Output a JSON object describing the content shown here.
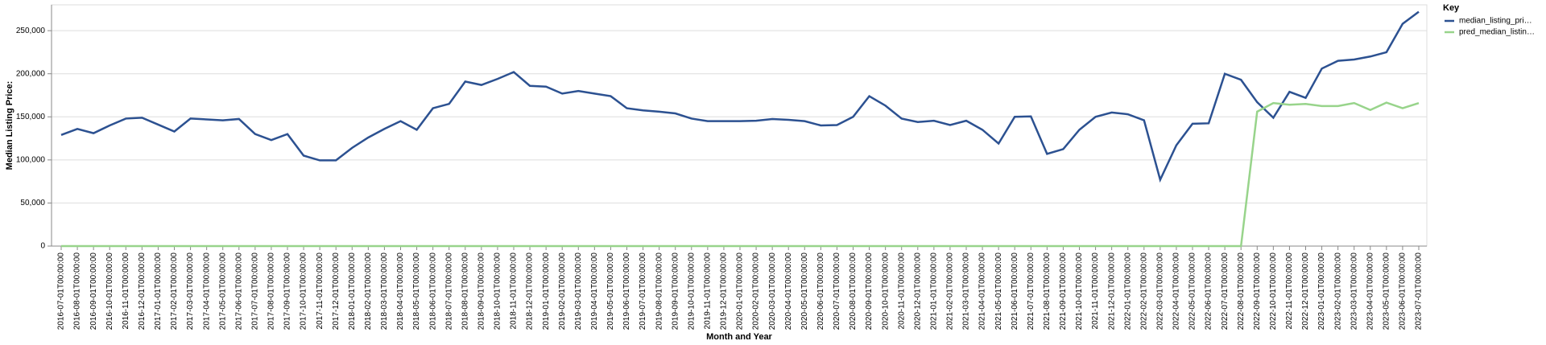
{
  "chart_data": {
    "type": "line",
    "x_label": "Month and Year",
    "y_label": "Median Listing Price:",
    "legend_title": "Key",
    "legend_position": "right",
    "grid": true,
    "categories": [
      "2016-07-01T00:00:00",
      "2016-08-01T00:00:00",
      "2016-09-01T00:00:00",
      "2016-10-01T00:00:00",
      "2016-11-01T00:00:00",
      "2016-12-01T00:00:00",
      "2017-01-01T00:00:00",
      "2017-02-01T00:00:00",
      "2017-03-01T00:00:00",
      "2017-04-01T00:00:00",
      "2017-05-01T00:00:00",
      "2017-06-01T00:00:00",
      "2017-07-01T00:00:00",
      "2017-08-01T00:00:00",
      "2017-09-01T00:00:00",
      "2017-10-01T00:00:00",
      "2017-11-01T00:00:00",
      "2017-12-01T00:00:00",
      "2018-01-01T00:00:00",
      "2018-02-01T00:00:00",
      "2018-03-01T00:00:00",
      "2018-04-01T00:00:00",
      "2018-05-01T00:00:00",
      "2018-06-01T00:00:00",
      "2018-07-01T00:00:00",
      "2018-08-01T00:00:00",
      "2018-09-01T00:00:00",
      "2018-10-01T00:00:00",
      "2018-11-01T00:00:00",
      "2018-12-01T00:00:00",
      "2019-01-01T00:00:00",
      "2019-02-01T00:00:00",
      "2019-03-01T00:00:00",
      "2019-04-01T00:00:00",
      "2019-05-01T00:00:00",
      "2019-06-01T00:00:00",
      "2019-07-01T00:00:00",
      "2019-08-01T00:00:00",
      "2019-09-01T00:00:00",
      "2019-10-01T00:00:00",
      "2019-11-01T00:00:00",
      "2019-12-01T00:00:00",
      "2020-01-01T00:00:00",
      "2020-02-01T00:00:00",
      "2020-03-01T00:00:00",
      "2020-04-01T00:00:00",
      "2020-05-01T00:00:00",
      "2020-06-01T00:00:00",
      "2020-07-01T00:00:00",
      "2020-08-01T00:00:00",
      "2020-09-01T00:00:00",
      "2020-10-01T00:00:00",
      "2020-11-01T00:00:00",
      "2020-12-01T00:00:00",
      "2021-01-01T00:00:00",
      "2021-02-01T00:00:00",
      "2021-03-01T00:00:00",
      "2021-04-01T00:00:00",
      "2021-05-01T00:00:00",
      "2021-06-01T00:00:00",
      "2021-07-01T00:00:00",
      "2021-08-01T00:00:00",
      "2021-09-01T00:00:00",
      "2021-10-01T00:00:00",
      "2021-11-01T00:00:00",
      "2021-12-01T00:00:00",
      "2022-01-01T00:00:00",
      "2022-02-01T00:00:00",
      "2022-03-01T00:00:00",
      "2022-04-01T00:00:00",
      "2022-05-01T00:00:00",
      "2022-06-01T00:00:00",
      "2022-07-01T00:00:00",
      "2022-08-01T00:00:00",
      "2022-09-01T00:00:00",
      "2022-10-01T00:00:00",
      "2022-11-01T00:00:00",
      "2022-12-01T00:00:00",
      "2023-01-01T00:00:00",
      "2023-02-01T00:00:00",
      "2023-03-01T00:00:00",
      "2023-04-01T00:00:00",
      "2023-05-01T00:00:00",
      "2023-06-01T00:00:00",
      "2023-07-01T00:00:00"
    ],
    "series": [
      {
        "name": "median_listing_pri…",
        "color": "#2c5191",
        "values": [
          129000,
          136000,
          131000,
          140000,
          148000,
          149000,
          141000,
          133000,
          148000,
          147000,
          146000,
          147500,
          130000,
          123000,
          130000,
          105000,
          99500,
          99500,
          114000,
          126000,
          136000,
          145000,
          135000,
          160000,
          165000,
          191000,
          187000,
          194000,
          202000,
          186000,
          185000,
          177000,
          180000,
          177000,
          174000,
          160000,
          157500,
          156000,
          154000,
          148000,
          145000,
          145000,
          145000,
          145500,
          147500,
          146500,
          145000,
          140000,
          140500,
          150000,
          174000,
          163000,
          148000,
          144000,
          145500,
          140500,
          145500,
          135000,
          119000,
          150000,
          150500,
          107000,
          112500,
          135000,
          150000,
          155000,
          153000,
          146000,
          77000,
          117000,
          142000,
          142500,
          200000,
          193000,
          167000,
          149000,
          179000,
          172000,
          206000,
          215000,
          216500,
          220000,
          225000,
          258000,
          272000
        ]
      },
      {
        "name": "pred_median_listin…",
        "color": "#98d48b",
        "values": [
          0,
          0,
          0,
          0,
          0,
          0,
          0,
          0,
          0,
          0,
          0,
          0,
          0,
          0,
          0,
          0,
          0,
          0,
          0,
          0,
          0,
          0,
          0,
          0,
          0,
          0,
          0,
          0,
          0,
          0,
          0,
          0,
          0,
          0,
          0,
          0,
          0,
          0,
          0,
          0,
          0,
          0,
          0,
          0,
          0,
          0,
          0,
          0,
          0,
          0,
          0,
          0,
          0,
          0,
          0,
          0,
          0,
          0,
          0,
          0,
          0,
          0,
          0,
          0,
          0,
          0,
          0,
          0,
          0,
          0,
          0,
          0,
          0,
          0,
          156000,
          166000,
          164000,
          165000,
          162500,
          162500,
          166000,
          158000,
          166500,
          160000,
          166000
        ]
      }
    ],
    "ylim": [
      0,
      280000
    ],
    "yticks": [
      0,
      {
        "value": 50000,
        "label": "50,000"
      },
      {
        "value": 100000,
        "label": "100,000"
      },
      {
        "value": 150000,
        "label": "150,000"
      },
      {
        "value": 200000,
        "label": "200,000"
      },
      {
        "value": 250000,
        "label": "250,000"
      }
    ]
  }
}
